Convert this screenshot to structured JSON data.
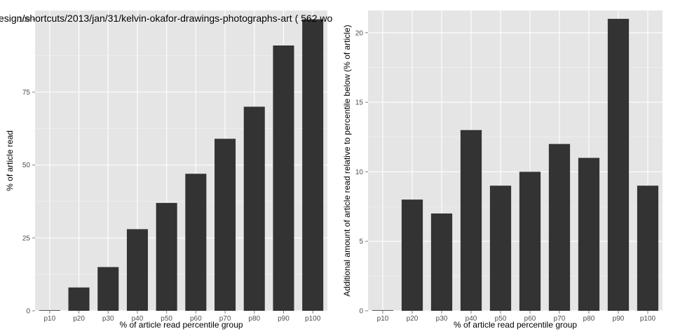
{
  "title": "esign/shortcuts/2013/jan/31/kelvin-okafor-drawings-photographs-art ( 562 wo",
  "chart_data": [
    {
      "type": "bar",
      "categories": [
        "p10",
        "p20",
        "p30",
        "p40",
        "p50",
        "p60",
        "p70",
        "p80",
        "p90",
        "p100"
      ],
      "values": [
        0,
        8,
        15,
        28,
        37,
        47,
        59,
        70,
        91,
        100
      ],
      "xlabel": "% of article read percentile group",
      "ylabel": "% of article read",
      "ylim": [
        0,
        103
      ],
      "yticks": [
        0,
        25,
        50,
        75,
        100
      ],
      "grid": true,
      "bar_color": "#333333",
      "panel_color": "#e5e5e5"
    },
    {
      "type": "bar",
      "categories": [
        "p10",
        "p20",
        "p30",
        "p40",
        "p50",
        "p60",
        "p70",
        "p80",
        "p90",
        "p100"
      ],
      "values": [
        0,
        8,
        7,
        13,
        9,
        10,
        12,
        11,
        21,
        9
      ],
      "xlabel": "% of article read percentile group",
      "ylabel": "Additional amount of article read relative to percentile below (% of article)",
      "ylim": [
        0,
        21.6
      ],
      "yticks": [
        0,
        5,
        10,
        15,
        20
      ],
      "grid": true,
      "bar_color": "#333333",
      "panel_color": "#e5e5e5"
    }
  ]
}
